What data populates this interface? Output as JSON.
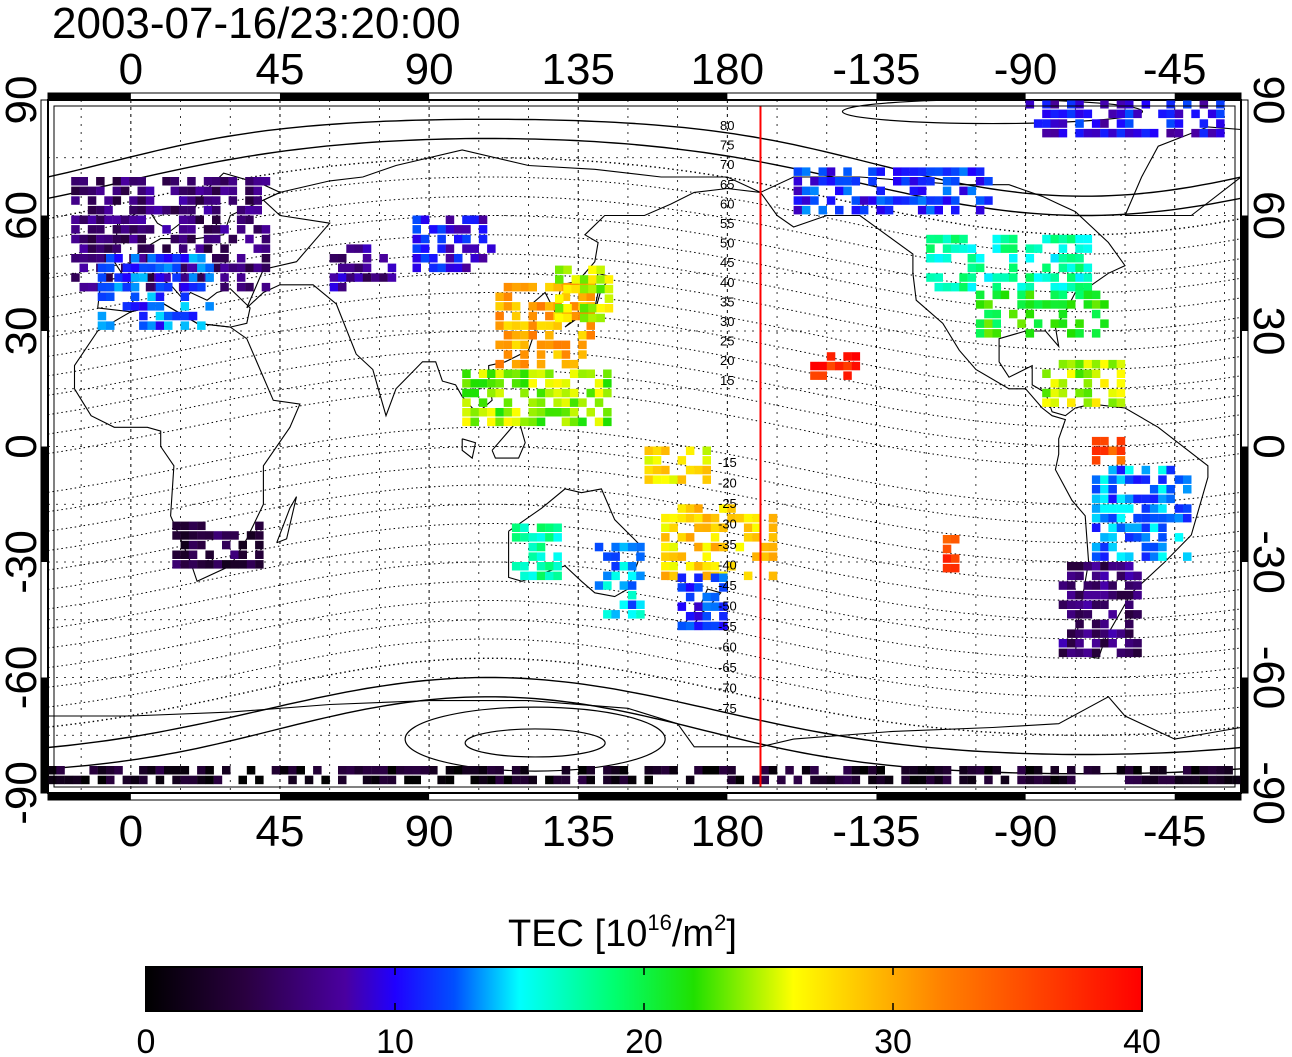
{
  "timestamp": "2003-07-16/23:20:00",
  "lon_ticks": [
    "0",
    "45",
    "90",
    "135",
    "180",
    "-135",
    "-90",
    "-45"
  ],
  "lat_ticks": [
    "90",
    "60",
    "30",
    "0",
    "-30",
    "-60",
    "-90"
  ],
  "colorbar": {
    "title_prefix": "TEC  [10",
    "title_sup1": "16",
    "title_mid": "/m",
    "title_sup2": "2",
    "title_suffix": "]",
    "min": 0,
    "max": 40,
    "tick_labels": [
      "0",
      "10",
      "20",
      "30",
      "40"
    ]
  },
  "map": {
    "lon_range": [
      -25,
      335
    ],
    "lat_range": [
      -90,
      90
    ],
    "meridian_marker_lon": 190,
    "marker_color": "#ff0000",
    "contour_labels_north": [
      "80",
      "75",
      "70",
      "65",
      "60",
      "55",
      "50",
      "45",
      "40",
      "35",
      "30",
      "25",
      "20",
      "15"
    ],
    "contour_labels_south": [
      "-15",
      "-20",
      "-25",
      "-30",
      "-35",
      "-40",
      "-45",
      "-50",
      "-55",
      "-60",
      "-65",
      "-70",
      "-75"
    ]
  },
  "chart_data": {
    "type": "heatmap",
    "title": "2003-07-16/23:20:00",
    "xlabel": "",
    "ylabel": "",
    "xlim": [
      -25,
      335
    ],
    "ylim": [
      -90,
      90
    ],
    "value_range": [
      0,
      40
    ],
    "regions": [
      {
        "lon": [
          -18,
          40
        ],
        "lat": [
          40,
          70
        ],
        "tec": 6
      },
      {
        "lon": [
          -10,
          25
        ],
        "lat": [
          30,
          50
        ],
        "tec": 12
      },
      {
        "lon": [
          60,
          80
        ],
        "lat": [
          40,
          52
        ],
        "tec": 7
      },
      {
        "lon": [
          85,
          110
        ],
        "lat": [
          45,
          58
        ],
        "tec": 10
      },
      {
        "lon": [
          110,
          140
        ],
        "lat": [
          20,
          42
        ],
        "tec": 30
      },
      {
        "lon": [
          128,
          145
        ],
        "lat": [
          32,
          46
        ],
        "tec": 25
      },
      {
        "lon": [
          100,
          145
        ],
        "lat": [
          5,
          20
        ],
        "tec": 24
      },
      {
        "lon": [
          155,
          175
        ],
        "lat": [
          -10,
          0
        ],
        "tec": 27
      },
      {
        "lon": [
          160,
          195
        ],
        "lat": [
          -35,
          -15
        ],
        "tec": 28
      },
      {
        "lon": [
          140,
          155
        ],
        "lat": [
          -45,
          -25
        ],
        "tec": 14
      },
      {
        "lon": [
          115,
          130
        ],
        "lat": [
          -35,
          -22
        ],
        "tec": 17
      },
      {
        "lon": [
          165,
          180
        ],
        "lat": [
          -48,
          -35
        ],
        "tec": 11
      },
      {
        "lon": [
          205,
          218
        ],
        "lat": [
          17,
          24
        ],
        "tec": 38
      },
      {
        "lon": [
          200,
          260
        ],
        "lat": [
          60,
          72
        ],
        "tec": 11
      },
      {
        "lon": [
          240,
          290
        ],
        "lat": [
          40,
          55
        ],
        "tec": 17
      },
      {
        "lon": [
          255,
          295
        ],
        "lat": [
          28,
          40
        ],
        "tec": 21
      },
      {
        "lon": [
          275,
          300
        ],
        "lat": [
          10,
          22
        ],
        "tec": 25
      },
      {
        "lon": [
          290,
          300
        ],
        "lat": [
          -5,
          2
        ],
        "tec": 35
      },
      {
        "lon": [
          245,
          250
        ],
        "lat": [
          -33,
          -25
        ],
        "tec": 36
      },
      {
        "lon": [
          290,
          320
        ],
        "lat": [
          -30,
          -5
        ],
        "tec": 13
      },
      {
        "lon": [
          280,
          305
        ],
        "lat": [
          -55,
          -30
        ],
        "tec": 6
      },
      {
        "lon": [
          10,
          40
        ],
        "lat": [
          -32,
          -20
        ],
        "tec": 4
      },
      {
        "lon": [
          270,
          330
        ],
        "lat": [
          80,
          88
        ],
        "tec": 10
      },
      {
        "lon": [
          -25,
          335
        ],
        "lat": [
          -88,
          -84
        ],
        "tec": 2
      }
    ]
  }
}
